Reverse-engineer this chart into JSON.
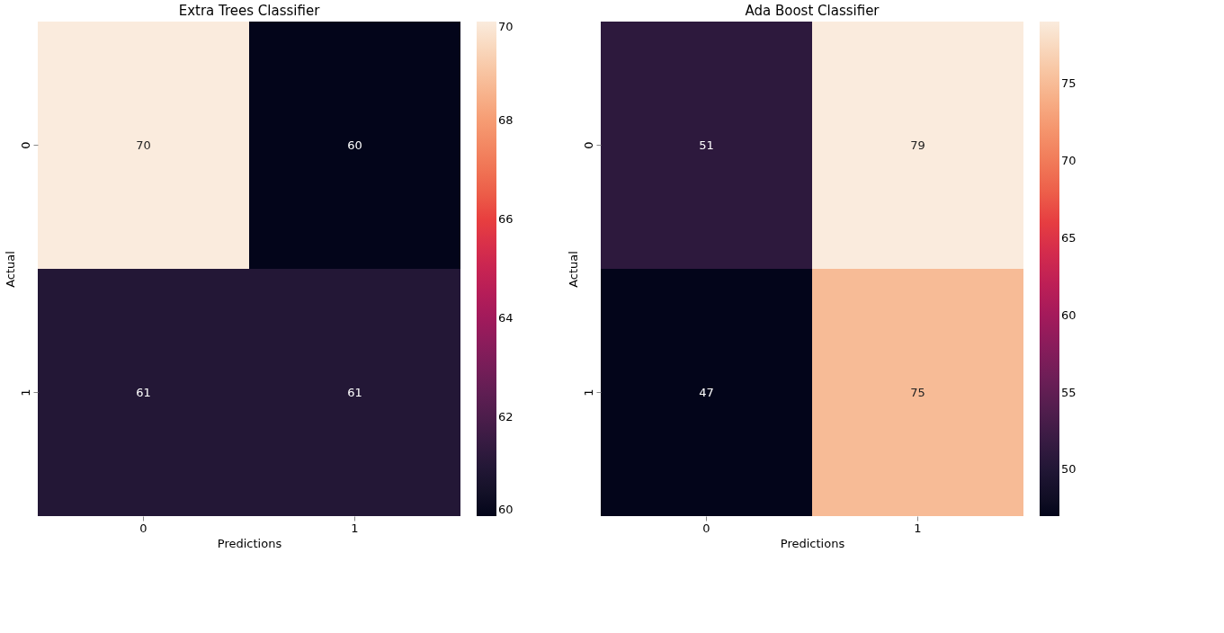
{
  "chart_data": [
    {
      "type": "heatmap",
      "title": "Extra Trees Classifier",
      "xlabel": "Predictions",
      "ylabel": "Actual",
      "categories": [
        "0",
        "1"
      ],
      "y_categories": [
        "0",
        "1"
      ],
      "cells": [
        [
          70,
          60
        ],
        [
          61,
          61
        ]
      ],
      "clim": [
        60,
        70
      ],
      "cticks": [
        60,
        62,
        64,
        66,
        68,
        70
      ],
      "data_labels": true
    },
    {
      "type": "heatmap",
      "title": "Ada Boost Classifier",
      "xlabel": "Predictions",
      "ylabel": "Actual",
      "categories": [
        "0",
        "1"
      ],
      "y_categories": [
        "0",
        "1"
      ],
      "cells": [
        [
          51,
          79
        ],
        [
          47,
          75
        ]
      ],
      "clim": [
        47,
        79
      ],
      "cticks": [
        50,
        55,
        60,
        65,
        70,
        75
      ],
      "data_labels": true
    }
  ]
}
